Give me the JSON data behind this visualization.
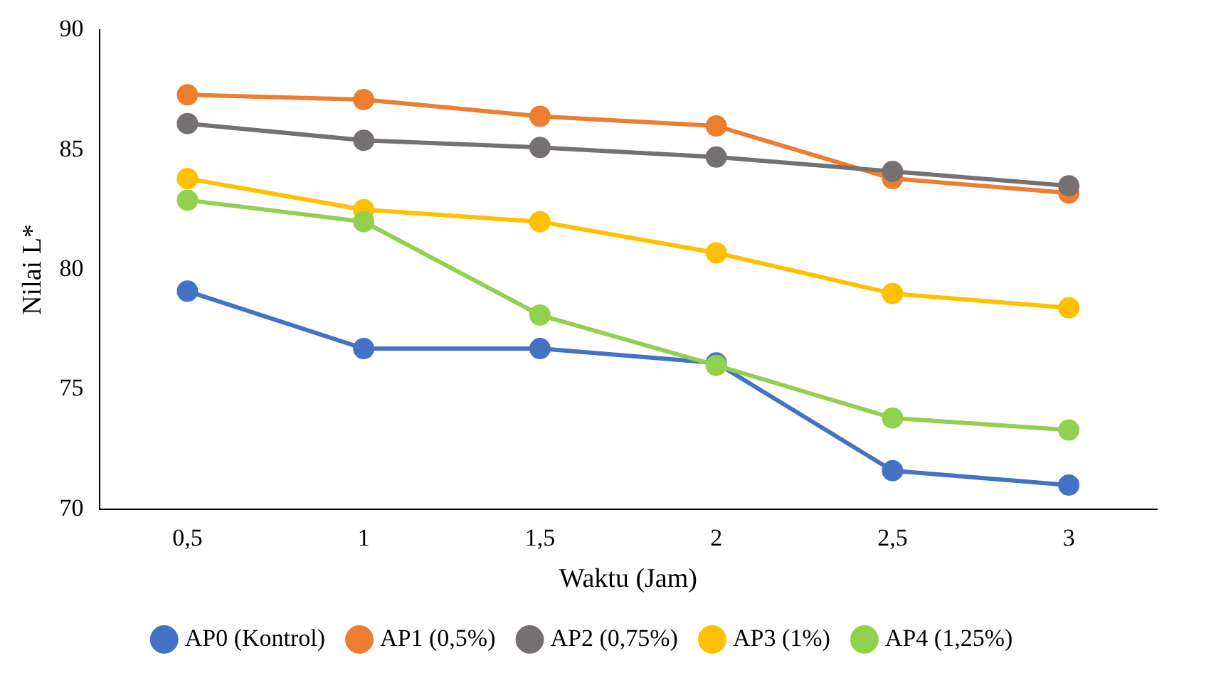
{
  "chart_data": {
    "type": "line",
    "xlabel": "Waktu (Jam)",
    "ylabel": "Nilai L*",
    "categories": [
      "0,5",
      "1",
      "1,5",
      "2",
      "2,5",
      "3"
    ],
    "ylim": [
      70,
      90
    ],
    "yticks": [
      70,
      75,
      80,
      85,
      90
    ],
    "grid": false,
    "legend": "bottom",
    "marker": "circle",
    "line_style": "solid",
    "series": [
      {
        "name": "AP0 (Kontrol)",
        "color": "#4472c4",
        "values": [
          79.1,
          76.7,
          76.7,
          76.1,
          71.6,
          71.0
        ]
      },
      {
        "name": "AP1 (0,5%)",
        "color": "#ed7d31",
        "values": [
          87.3,
          87.1,
          86.4,
          86.0,
          83.8,
          83.2
        ]
      },
      {
        "name": "AP2 (0,75%)",
        "color": "#767171",
        "values": [
          86.1,
          85.4,
          85.1,
          84.7,
          84.1,
          83.5
        ]
      },
      {
        "name": "AP3 (1%)",
        "color": "#ffc000",
        "values": [
          83.8,
          82.5,
          82.0,
          80.7,
          79.0,
          78.4
        ]
      },
      {
        "name": "AP4 (1,25%)",
        "color": "#92d050",
        "values": [
          82.9,
          82.0,
          78.1,
          76.0,
          73.8,
          73.3
        ]
      }
    ]
  }
}
